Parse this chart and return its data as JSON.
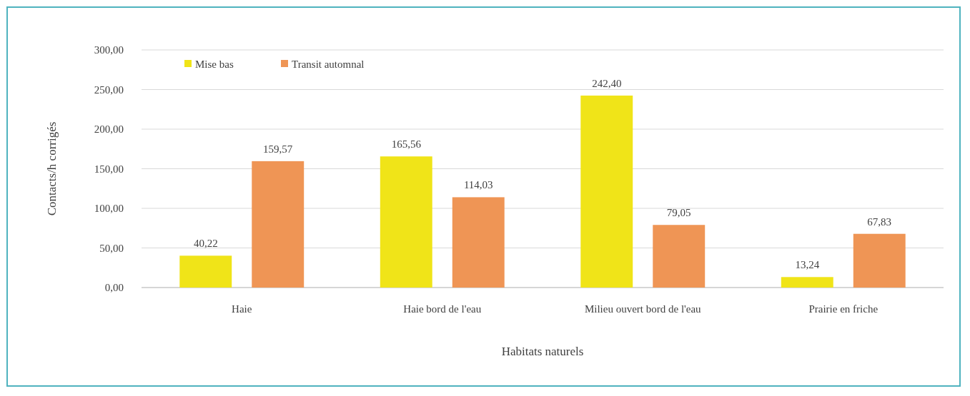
{
  "chart_data": {
    "type": "bar",
    "xlabel": "Habitats naturels",
    "ylabel": "Contacts/h corrigés",
    "categories": [
      "Haie",
      "Haie bord de l'eau",
      "Milieu ouvert bord de l'eau",
      "Prairie en friche"
    ],
    "series": [
      {
        "name": "Mise bas",
        "color": "#f0e418",
        "values": [
          40.22,
          165.56,
          242.4,
          13.24
        ],
        "value_labels": [
          "40,22",
          "165,56",
          "242,40",
          "13,24"
        ]
      },
      {
        "name": "Transit automnal",
        "color": "#ef9555",
        "values": [
          159.57,
          114.03,
          79.05,
          67.83
        ],
        "value_labels": [
          "159,57",
          "114,03",
          "79,05",
          "67,83"
        ]
      }
    ],
    "ylim": [
      0,
      300
    ],
    "yticks": [
      {
        "value": 0,
        "label": "0,00"
      },
      {
        "value": 50,
        "label": "50,00"
      },
      {
        "value": 100,
        "label": "100,00"
      },
      {
        "value": 150,
        "label": "150,00"
      },
      {
        "value": 200,
        "label": "200,00"
      },
      {
        "value": 250,
        "label": "250,00"
      },
      {
        "value": 300,
        "label": "300,00"
      }
    ],
    "grid": "y",
    "legend": "top left"
  }
}
